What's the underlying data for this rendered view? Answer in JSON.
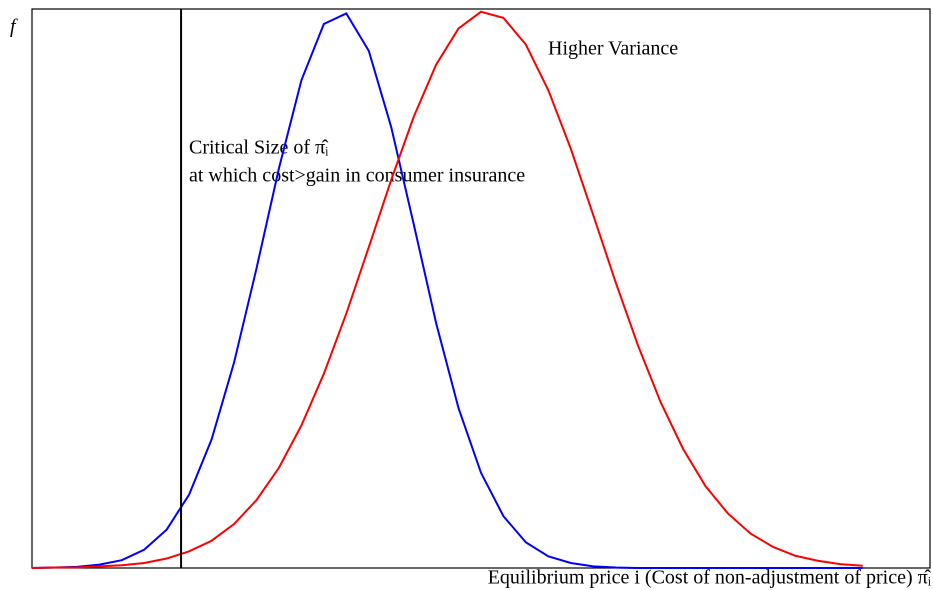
{
  "chart_data": {
    "type": "line",
    "y_label": "f",
    "x_label": "Equilibrium price i (Cost of non-adjustment of price) π̂ᵢ",
    "annotations": [
      "Critical Size of π̂ᵢ",
      "at which cost>gain in consumer insurance",
      "Higher Variance"
    ],
    "vline": 0.166,
    "vline_color": "#000000",
    "x": [
      0,
      0.025,
      0.05,
      0.075,
      0.1,
      0.125,
      0.15,
      0.175,
      0.2,
      0.225,
      0.25,
      0.275,
      0.3,
      0.325,
      0.35,
      0.375,
      0.4,
      0.425,
      0.45,
      0.475,
      0.5,
      0.525,
      0.55,
      0.575,
      0.6,
      0.625,
      0.65,
      0.675,
      0.7,
      0.725,
      0.75,
      0.775,
      0.8,
      0.825,
      0.85,
      0.875,
      0.9,
      0.925
    ],
    "series": [
      {
        "color": "#0000ff",
        "values": [
          0,
          0.001,
          0.002,
          0.006,
          0.014,
          0.033,
          0.069,
          0.132,
          0.231,
          0.369,
          0.538,
          0.718,
          0.876,
          0.977,
          0.996,
          0.929,
          0.792,
          0.618,
          0.44,
          0.287,
          0.171,
          0.093,
          0.046,
          0.021,
          0.009,
          0.003,
          0.001,
          0,
          0,
          0,
          0,
          0,
          0,
          0,
          0,
          0,
          0,
          0
        ]
      },
      {
        "color": "#ff0000",
        "values": [
          0,
          0.001,
          0.001,
          0.003,
          0.005,
          0.009,
          0.017,
          0.03,
          0.049,
          0.079,
          0.122,
          0.18,
          0.256,
          0.349,
          0.457,
          0.576,
          0.697,
          0.81,
          0.904,
          0.969,
          0.999,
          0.988,
          0.94,
          0.858,
          0.753,
          0.634,
          0.513,
          0.399,
          0.298,
          0.214,
          0.147,
          0.098,
          0.062,
          0.038,
          0.022,
          0.013,
          0.007,
          0.004
        ]
      }
    ],
    "xlim": [
      0,
      1
    ],
    "ylim": [
      0,
      1.004
    ],
    "grid": false
  }
}
